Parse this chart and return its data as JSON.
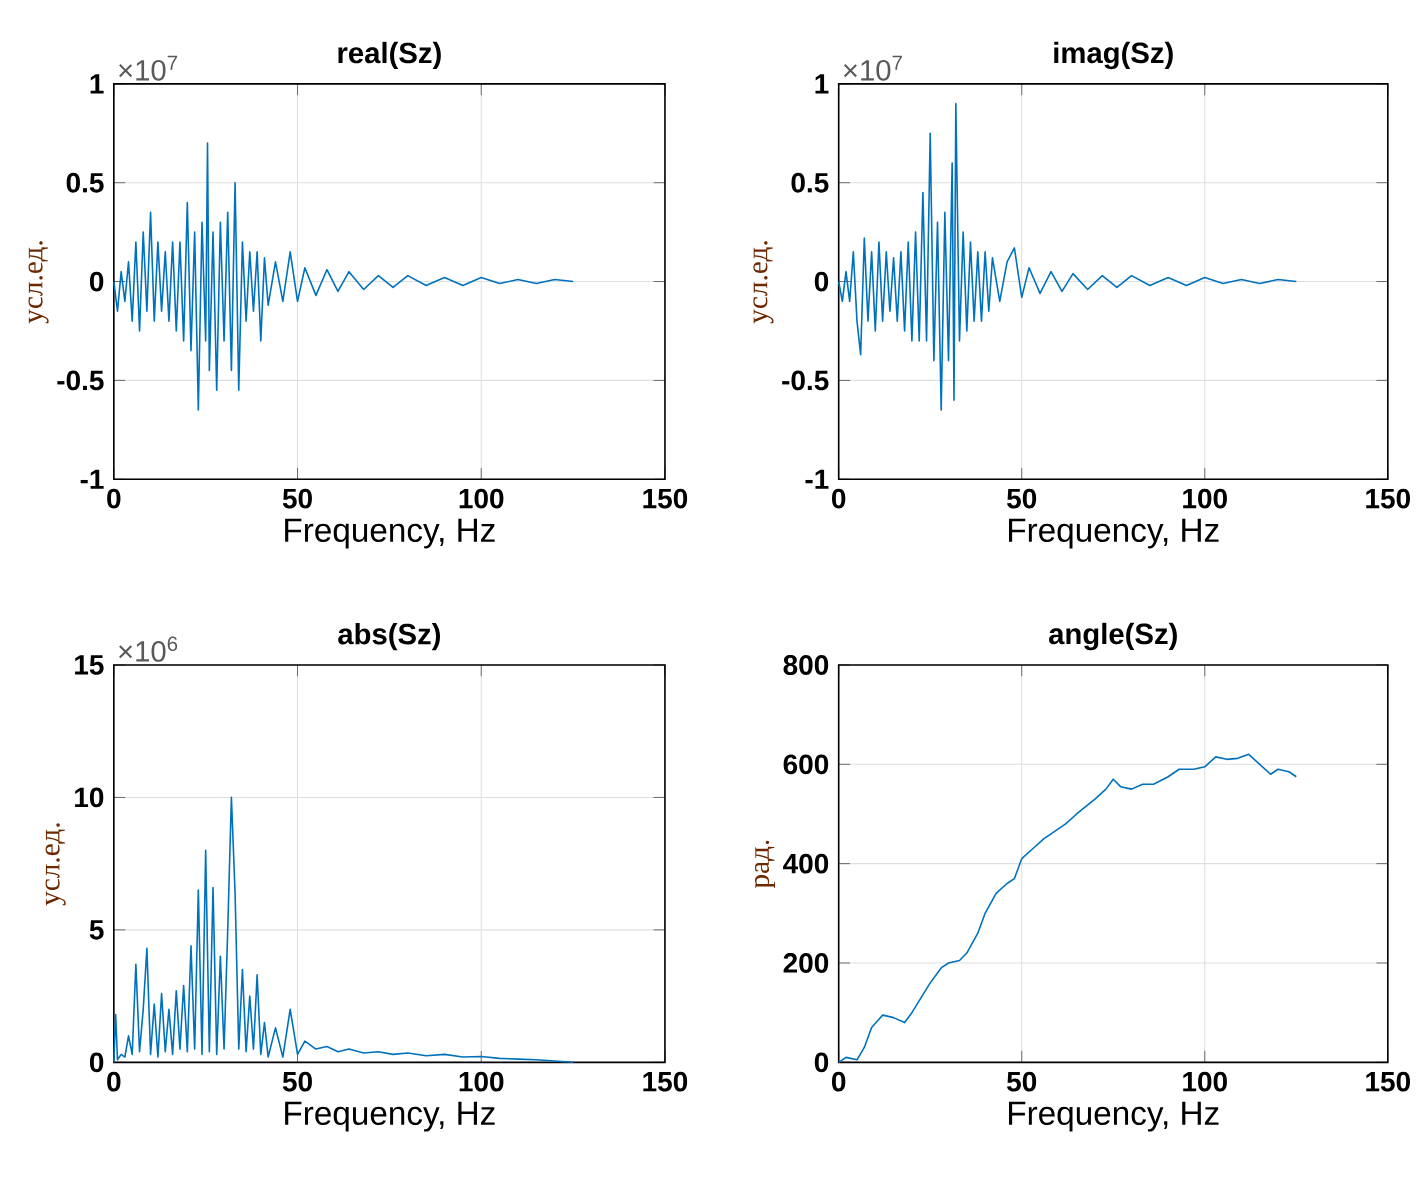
{
  "chart_data": [
    {
      "type": "line",
      "title": "real(Sz)",
      "xlabel": "Frequency, Hz",
      "ylabel": "усл.ед.",
      "annotations": [
        "×10$^{7}$"
      ],
      "xlim": [
        0,
        150
      ],
      "xticks": [
        0,
        50,
        100,
        150
      ],
      "ylim": [
        -1,
        1
      ],
      "yticks": [
        -1,
        -0.5,
        0,
        0.5,
        1
      ],
      "grid": true,
      "series": [
        {
          "color": "#0072bd",
          "x": [
            0,
            1,
            2,
            3,
            4,
            5,
            6,
            7,
            8,
            9,
            10,
            11,
            12,
            13,
            14,
            15,
            16,
            17,
            18,
            19,
            20,
            21,
            22,
            23,
            24,
            25,
            25.5,
            26,
            27,
            28,
            29,
            30,
            31,
            32,
            33,
            34,
            35,
            36,
            37,
            38,
            39,
            40,
            41,
            42,
            44,
            46,
            48,
            50,
            52,
            55,
            58,
            61,
            64,
            68,
            72,
            76,
            80,
            85,
            90,
            95,
            100,
            105,
            110,
            115,
            120,
            125
          ],
          "values": [
            0,
            -0.15,
            0.05,
            -0.1,
            0.1,
            -0.2,
            0.2,
            -0.25,
            0.25,
            -0.15,
            0.35,
            -0.2,
            0.2,
            -0.15,
            0.15,
            -0.2,
            0.2,
            -0.25,
            0.2,
            -0.3,
            0.4,
            -0.35,
            0.25,
            -0.65,
            0.3,
            -0.3,
            0.7,
            -0.45,
            0.25,
            -0.55,
            0.3,
            -0.3,
            0.35,
            -0.45,
            0.5,
            -0.55,
            0.2,
            -0.2,
            0.15,
            -0.15,
            0.15,
            -0.3,
            0.12,
            -0.12,
            0.1,
            -0.1,
            0.15,
            -0.1,
            0.07,
            -0.07,
            0.06,
            -0.05,
            0.05,
            -0.04,
            0.03,
            -0.03,
            0.03,
            -0.02,
            0.02,
            -0.02,
            0.02,
            -0.01,
            0.01,
            -0.01,
            0.01,
            0
          ]
        }
      ]
    },
    {
      "type": "line",
      "title": "imag(Sz)",
      "xlabel": "Frequency, Hz",
      "ylabel": "усл.ед.",
      "annotations": [
        "×10$^{7}$"
      ],
      "xlim": [
        0,
        150
      ],
      "xticks": [
        0,
        50,
        100,
        150
      ],
      "ylim": [
        -1,
        1
      ],
      "yticks": [
        -1,
        -0.5,
        0,
        0.5,
        1
      ],
      "grid": true,
      "series": [
        {
          "color": "#0072bd",
          "x": [
            0,
            1,
            2,
            3,
            4,
            5,
            6,
            7,
            8,
            9,
            10,
            11,
            12,
            13,
            14,
            15,
            16,
            17,
            18,
            19,
            20,
            21,
            22,
            23,
            24,
            25,
            26,
            27,
            28,
            29,
            30,
            31,
            31.5,
            32,
            33,
            34,
            35,
            36,
            37,
            38,
            39,
            40,
            41,
            42,
            44,
            46,
            48,
            50,
            52,
            55,
            58,
            61,
            64,
            68,
            72,
            76,
            80,
            85,
            90,
            95,
            100,
            105,
            110,
            115,
            120,
            125
          ],
          "values": [
            0,
            -0.1,
            0.05,
            -0.1,
            0.15,
            -0.2,
            -0.37,
            0.22,
            -0.2,
            0.15,
            -0.25,
            0.2,
            -0.2,
            0.15,
            -0.15,
            0.12,
            -0.2,
            0.15,
            -0.25,
            0.2,
            -0.3,
            0.25,
            -0.3,
            0.45,
            -0.3,
            0.75,
            -0.4,
            0.3,
            -0.65,
            0.35,
            -0.4,
            0.6,
            -0.6,
            0.9,
            -0.3,
            0.25,
            -0.25,
            0.2,
            -0.2,
            0.15,
            -0.2,
            0.15,
            -0.15,
            0.12,
            -0.1,
            0.1,
            0.17,
            -0.08,
            0.07,
            -0.06,
            0.05,
            -0.05,
            0.04,
            -0.04,
            0.03,
            -0.03,
            0.03,
            -0.02,
            0.02,
            -0.02,
            0.02,
            -0.01,
            0.01,
            -0.01,
            0.01,
            0
          ]
        }
      ]
    },
    {
      "type": "line",
      "title": "abs(Sz)",
      "xlabel": "Frequency, Hz",
      "ylabel": "усл.ед.",
      "annotations": [
        "×10$^{6}$"
      ],
      "xlim": [
        0,
        150
      ],
      "xticks": [
        0,
        50,
        100,
        150
      ],
      "ylim": [
        0,
        15
      ],
      "yticks": [
        0,
        5,
        10,
        15
      ],
      "grid": true,
      "series": [
        {
          "color": "#0072bd",
          "x": [
            0,
            0.5,
            1,
            2,
            3,
            4,
            5,
            6,
            7,
            8,
            9,
            10,
            11,
            12,
            13,
            14,
            15,
            16,
            17,
            18,
            19,
            20,
            21,
            22,
            23,
            24,
            25,
            26,
            27,
            28,
            29,
            30,
            31,
            32,
            33,
            34,
            35,
            36,
            37,
            38,
            39,
            40,
            41,
            42,
            44,
            46,
            48,
            50,
            52,
            55,
            58,
            61,
            64,
            68,
            72,
            76,
            80,
            85,
            90,
            95,
            100,
            105,
            110,
            115,
            120,
            125
          ],
          "values": [
            0,
            1.8,
            0.1,
            0.3,
            0.2,
            1,
            0.3,
            3.7,
            0.4,
            2,
            4.3,
            0.3,
            2.2,
            0.2,
            2.6,
            0.4,
            2,
            0.3,
            2.7,
            0.5,
            2.9,
            0.4,
            4.4,
            0.5,
            6.5,
            0.3,
            8,
            0.4,
            6.6,
            0.3,
            4,
            0.5,
            5,
            10,
            6.4,
            0.5,
            3.5,
            0.4,
            2.5,
            0.5,
            3.3,
            0.3,
            1.5,
            0.2,
            1.3,
            0.2,
            2,
            0.3,
            0.8,
            0.5,
            0.6,
            0.4,
            0.5,
            0.35,
            0.4,
            0.3,
            0.35,
            0.25,
            0.3,
            0.2,
            0.22,
            0.15,
            0.12,
            0.1,
            0.05,
            0
          ]
        }
      ]
    },
    {
      "type": "line",
      "title": "angle(Sz)",
      "xlabel": "Frequency, Hz",
      "ylabel": "рад.",
      "xlim": [
        0,
        150
      ],
      "xticks": [
        0,
        50,
        100,
        150
      ],
      "ylim": [
        0,
        800
      ],
      "yticks": [
        0,
        200,
        400,
        600,
        800
      ],
      "grid": true,
      "series": [
        {
          "color": "#0072bd",
          "x": [
            0,
            2,
            5,
            7,
            9,
            12,
            15,
            18,
            20,
            25,
            28,
            30,
            33,
            35,
            38,
            40,
            43,
            46,
            48,
            50,
            53,
            56,
            60,
            62,
            65,
            70,
            73,
            75,
            77,
            80,
            83,
            86,
            90,
            93,
            97,
            100,
            103,
            106,
            109,
            112,
            115,
            118,
            120,
            123,
            125
          ],
          "values": [
            0,
            10,
            5,
            30,
            70,
            95,
            90,
            80,
            100,
            160,
            190,
            200,
            205,
            220,
            260,
            300,
            340,
            360,
            370,
            410,
            430,
            450,
            470,
            480,
            500,
            530,
            550,
            570,
            555,
            550,
            560,
            560,
            575,
            590,
            590,
            595,
            615,
            610,
            612,
            620,
            600,
            580,
            590,
            585,
            575
          ]
        }
      ]
    }
  ]
}
